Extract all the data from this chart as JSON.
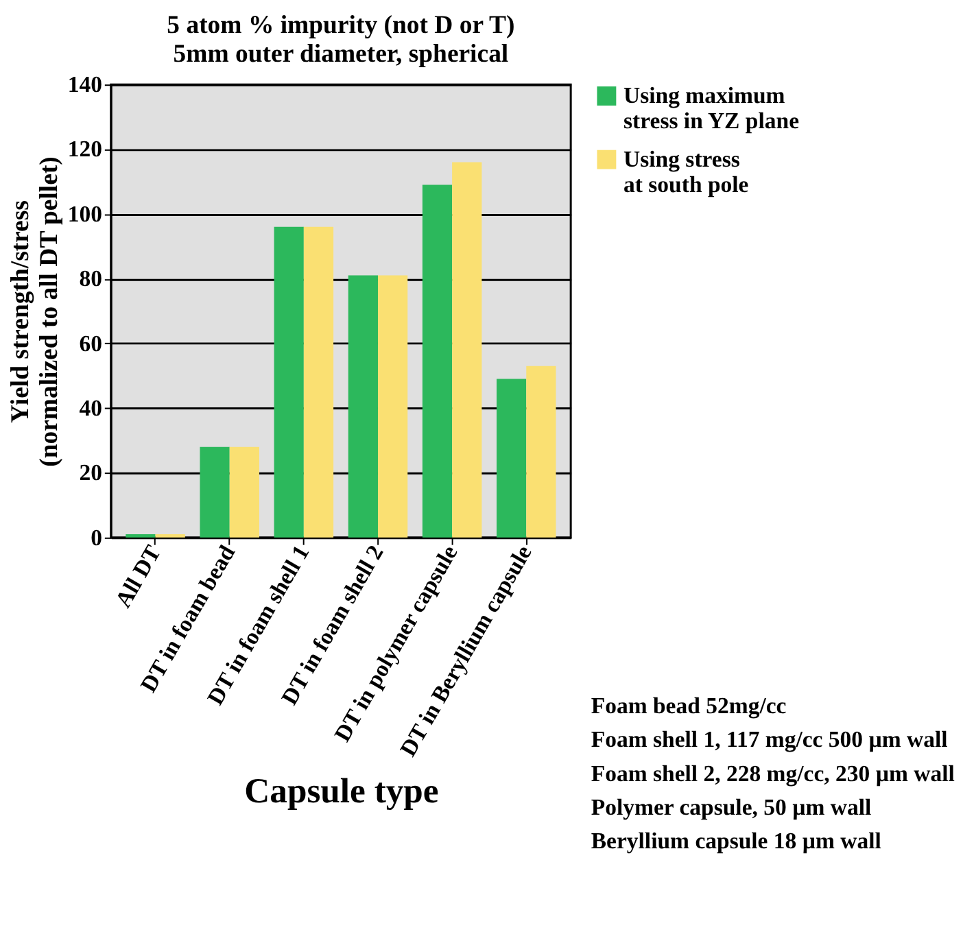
{
  "chart_data": {
    "type": "bar",
    "title": "5 atom % impurity (not D or T)",
    "subtitle": "5mm outer diameter, spherical",
    "xlabel": "Capsule type",
    "ylabel": "Yield strength/stress\n(normalized to all DT pellet)",
    "categories": [
      "All DT",
      "DT in foam bead",
      "DT in foam shell 1",
      "DT in foam shell 2",
      "DT in polymer capsule",
      "DT in Beryllium capsule"
    ],
    "series": [
      {
        "name": "Using maximum stress in YZ plane",
        "color": "#2cb85c",
        "values": [
          1,
          28,
          96,
          81,
          109,
          49
        ]
      },
      {
        "name": "Using stress at south pole",
        "color": "#fae072",
        "values": [
          1,
          28,
          96,
          81,
          116,
          53
        ]
      }
    ],
    "ylim": [
      0,
      140
    ],
    "yticks": [
      0,
      20,
      40,
      60,
      80,
      100,
      120,
      140
    ],
    "grid": "y",
    "legend": "right",
    "annotations": [
      "Foam bead 52mg/cc",
      "Foam shell 1, 117 mg/cc 500 µm wall",
      "Foam shell 2, 228 mg/cc, 230 µm wall",
      "Polymer capsule, 50 µm wall",
      "Beryllium capsule 18 µm wall"
    ]
  }
}
